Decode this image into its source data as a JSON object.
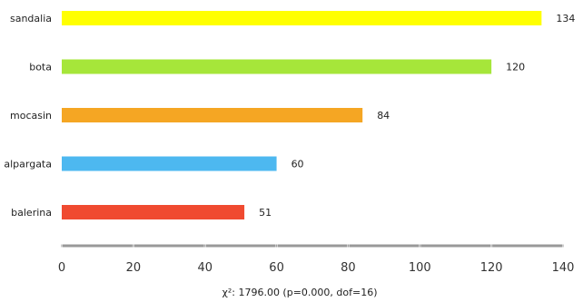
{
  "chart_data": {
    "type": "bar",
    "orientation": "horizontal",
    "categories": [
      "sandalia",
      "bota",
      "mocasin",
      "alpargata",
      "balerina"
    ],
    "values": [
      134,
      120,
      84,
      60,
      51
    ],
    "bar_colors": [
      "#ffff00",
      "#a6e63a",
      "#f5a623",
      "#4db8f0",
      "#f04a30"
    ],
    "xlim": [
      0,
      140
    ],
    "x_ticks": [
      0,
      20,
      40,
      60,
      80,
      100,
      120,
      140
    ],
    "grid": false,
    "axis_color": "#999999",
    "title": "",
    "xlabel": "",
    "ylabel": "",
    "footnote": "χ²: 1796.00 (p=0.000, dof=16)"
  }
}
